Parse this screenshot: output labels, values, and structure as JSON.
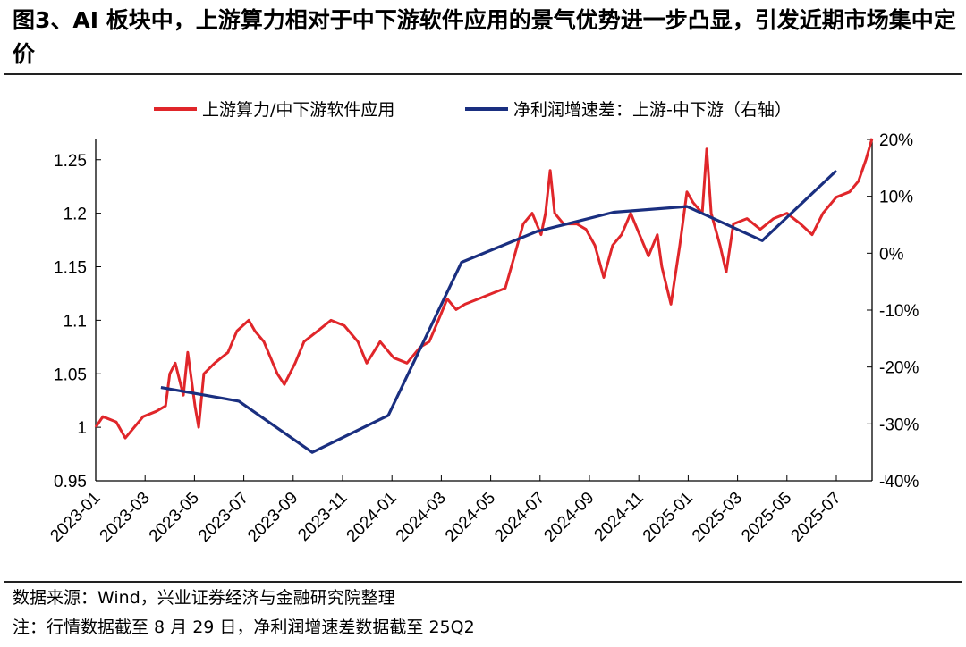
{
  "title": "图3、AI 板块中，上游算力相对于中下游软件应用的景气优势进一步凸显，引发近期市场集中定价",
  "footer": {
    "source": "数据来源：Wind，兴业证券经济与金融研究院整理",
    "note": "注：行情数据截至 8 月 29 日，净利润增速差数据截至 25Q2"
  },
  "chart_data": {
    "type": "line",
    "title": "图3、AI 板块中，上游算力相对于中下游软件应用的景气优势进一步凸显，引发近期市场集中定价",
    "x_unit": "months since 2023-01",
    "x_ticks": [
      "2023-01",
      "2023-03",
      "2023-05",
      "2023-07",
      "2023-09",
      "2023-11",
      "2024-01",
      "2024-03",
      "2024-05",
      "2024-07",
      "2024-09",
      "2024-11",
      "2025-01",
      "2025-03",
      "2025-05",
      "2025-07"
    ],
    "xlim": [
      0,
      32
    ],
    "y_left": {
      "ticks": [
        "0.95",
        "1",
        "1.05",
        "1.1",
        "1.15",
        "1.2",
        "1.25"
      ],
      "lim": [
        0.95,
        1.269
      ]
    },
    "y_right": {
      "ticks": [
        "-40%",
        "-30%",
        "-20%",
        "-10%",
        "0%",
        "10%",
        "20%"
      ],
      "lim": [
        -40,
        20
      ]
    },
    "legend_position": "top",
    "grid": false,
    "series": [
      {
        "name": "上游算力/中下游软件应用",
        "axis": "left",
        "color": "#e0262a",
        "points": [
          [
            0,
            1.0
          ],
          [
            0.29,
            1.01
          ],
          [
            0.83,
            1.005
          ],
          [
            1.2,
            0.99
          ],
          [
            1.92,
            1.01
          ],
          [
            2.46,
            1.015
          ],
          [
            2.83,
            1.02
          ],
          [
            3.0,
            1.05
          ],
          [
            3.22,
            1.06
          ],
          [
            3.55,
            1.03
          ],
          [
            3.73,
            1.07
          ],
          [
            4.02,
            1.02
          ],
          [
            4.17,
            1.0
          ],
          [
            4.38,
            1.05
          ],
          [
            4.82,
            1.06
          ],
          [
            5.36,
            1.07
          ],
          [
            5.72,
            1.09
          ],
          [
            6.2,
            1.1
          ],
          [
            6.45,
            1.09
          ],
          [
            6.81,
            1.08
          ],
          [
            7.36,
            1.05
          ],
          [
            7.64,
            1.04
          ],
          [
            8.08,
            1.06
          ],
          [
            8.44,
            1.08
          ],
          [
            8.99,
            1.09
          ],
          [
            9.53,
            1.1
          ],
          [
            10.07,
            1.095
          ],
          [
            10.62,
            1.08
          ],
          [
            10.98,
            1.06
          ],
          [
            11.52,
            1.08
          ],
          [
            12.07,
            1.065
          ],
          [
            12.61,
            1.06
          ],
          [
            13.15,
            1.075
          ],
          [
            13.51,
            1.08
          ],
          [
            13.88,
            1.1
          ],
          [
            14.24,
            1.12
          ],
          [
            14.6,
            1.11
          ],
          [
            14.96,
            1.115
          ],
          [
            15.51,
            1.12
          ],
          [
            16.05,
            1.125
          ],
          [
            16.59,
            1.13
          ],
          [
            16.96,
            1.16
          ],
          [
            17.32,
            1.19
          ],
          [
            17.68,
            1.2
          ],
          [
            18.04,
            1.18
          ],
          [
            18.22,
            1.2
          ],
          [
            18.41,
            1.24
          ],
          [
            18.59,
            1.2
          ],
          [
            18.95,
            1.19
          ],
          [
            19.49,
            1.19
          ],
          [
            19.86,
            1.185
          ],
          [
            20.22,
            1.17
          ],
          [
            20.58,
            1.14
          ],
          [
            20.94,
            1.17
          ],
          [
            21.3,
            1.18
          ],
          [
            21.67,
            1.2
          ],
          [
            22.03,
            1.18
          ],
          [
            22.39,
            1.16
          ],
          [
            22.75,
            1.18
          ],
          [
            22.93,
            1.15
          ],
          [
            23.3,
            1.115
          ],
          [
            23.66,
            1.17
          ],
          [
            23.95,
            1.22
          ],
          [
            24.2,
            1.21
          ],
          [
            24.57,
            1.2
          ],
          [
            24.75,
            1.26
          ],
          [
            24.93,
            1.2
          ],
          [
            25.29,
            1.17
          ],
          [
            25.54,
            1.145
          ],
          [
            25.83,
            1.19
          ],
          [
            26.38,
            1.195
          ],
          [
            26.92,
            1.185
          ],
          [
            27.46,
            1.195
          ],
          [
            28.0,
            1.2
          ],
          [
            28.55,
            1.19
          ],
          [
            29.02,
            1.18
          ],
          [
            29.46,
            1.2
          ],
          [
            30.0,
            1.215
          ],
          [
            30.54,
            1.22
          ],
          [
            30.9,
            1.23
          ],
          [
            31.2,
            1.25
          ],
          [
            31.45,
            1.27
          ]
        ]
      },
      {
        "name": "净利润增速差：上游-中下游（右轴）",
        "axis": "right",
        "color": "#1a2f80",
        "points": [
          [
            2.64,
            -23.6
          ],
          [
            5.8,
            -26.0
          ],
          [
            8.77,
            -35.0
          ],
          [
            11.85,
            -28.5
          ],
          [
            14.82,
            -1.6
          ],
          [
            17.86,
            3.8
          ],
          [
            20.98,
            7.2
          ],
          [
            23.95,
            8.2
          ],
          [
            27.0,
            2.2
          ],
          [
            30.0,
            14.5
          ]
        ]
      }
    ]
  }
}
